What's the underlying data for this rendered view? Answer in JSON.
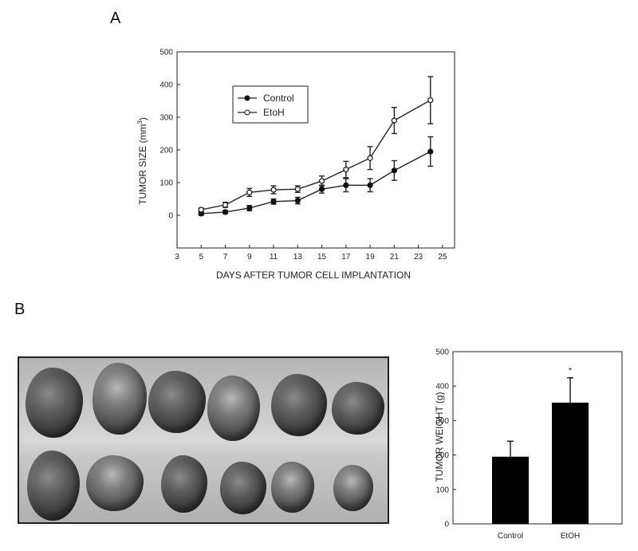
{
  "panels": {
    "a_label": "A",
    "b_label": "B"
  },
  "chart_data": [
    {
      "type": "line",
      "panel": "A",
      "xlabel": "DAYS AFTER TUMOR CELL IMPLANTATION",
      "ylabel": "TUMOR SIZE (mm3)",
      "ylabel_main": "TUMOR SIZE (mm",
      "ylabel_sup": "3",
      "ylabel_end": ")",
      "xlim": [
        3,
        26
      ],
      "ylim": [
        -100,
        500
      ],
      "xticks": [
        3,
        5,
        7,
        9,
        11,
        13,
        15,
        17,
        19,
        21,
        23,
        25
      ],
      "yticks": [
        0,
        100,
        200,
        300,
        400,
        500
      ],
      "legend_position": "top-left",
      "series": [
        {
          "name": "Control",
          "marker": "filled-circle",
          "x": [
            5,
            7,
            9,
            11,
            13,
            15,
            17,
            19,
            21,
            24
          ],
          "y": [
            5,
            10,
            22,
            42,
            45,
            80,
            92,
            92,
            137,
            195
          ],
          "err": [
            5,
            5,
            8,
            8,
            10,
            12,
            20,
            20,
            30,
            45
          ]
        },
        {
          "name": "EtoH",
          "marker": "open-circle",
          "x": [
            5,
            7,
            9,
            11,
            13,
            15,
            17,
            19,
            21,
            24
          ],
          "y": [
            17,
            32,
            70,
            78,
            80,
            105,
            140,
            175,
            290,
            352
          ],
          "err": [
            5,
            8,
            12,
            12,
            10,
            15,
            25,
            35,
            40,
            72
          ]
        }
      ]
    },
    {
      "type": "bar",
      "panel": "B",
      "categories": [
        "Control",
        "EtOH"
      ],
      "values": [
        195,
        352
      ],
      "err": [
        45,
        72
      ],
      "ylabel": "TUMOR WEIGHT (g)",
      "ylim": [
        0,
        500
      ],
      "yticks": [
        0,
        100,
        200,
        300,
        400,
        500
      ],
      "annotation": "*"
    }
  ]
}
